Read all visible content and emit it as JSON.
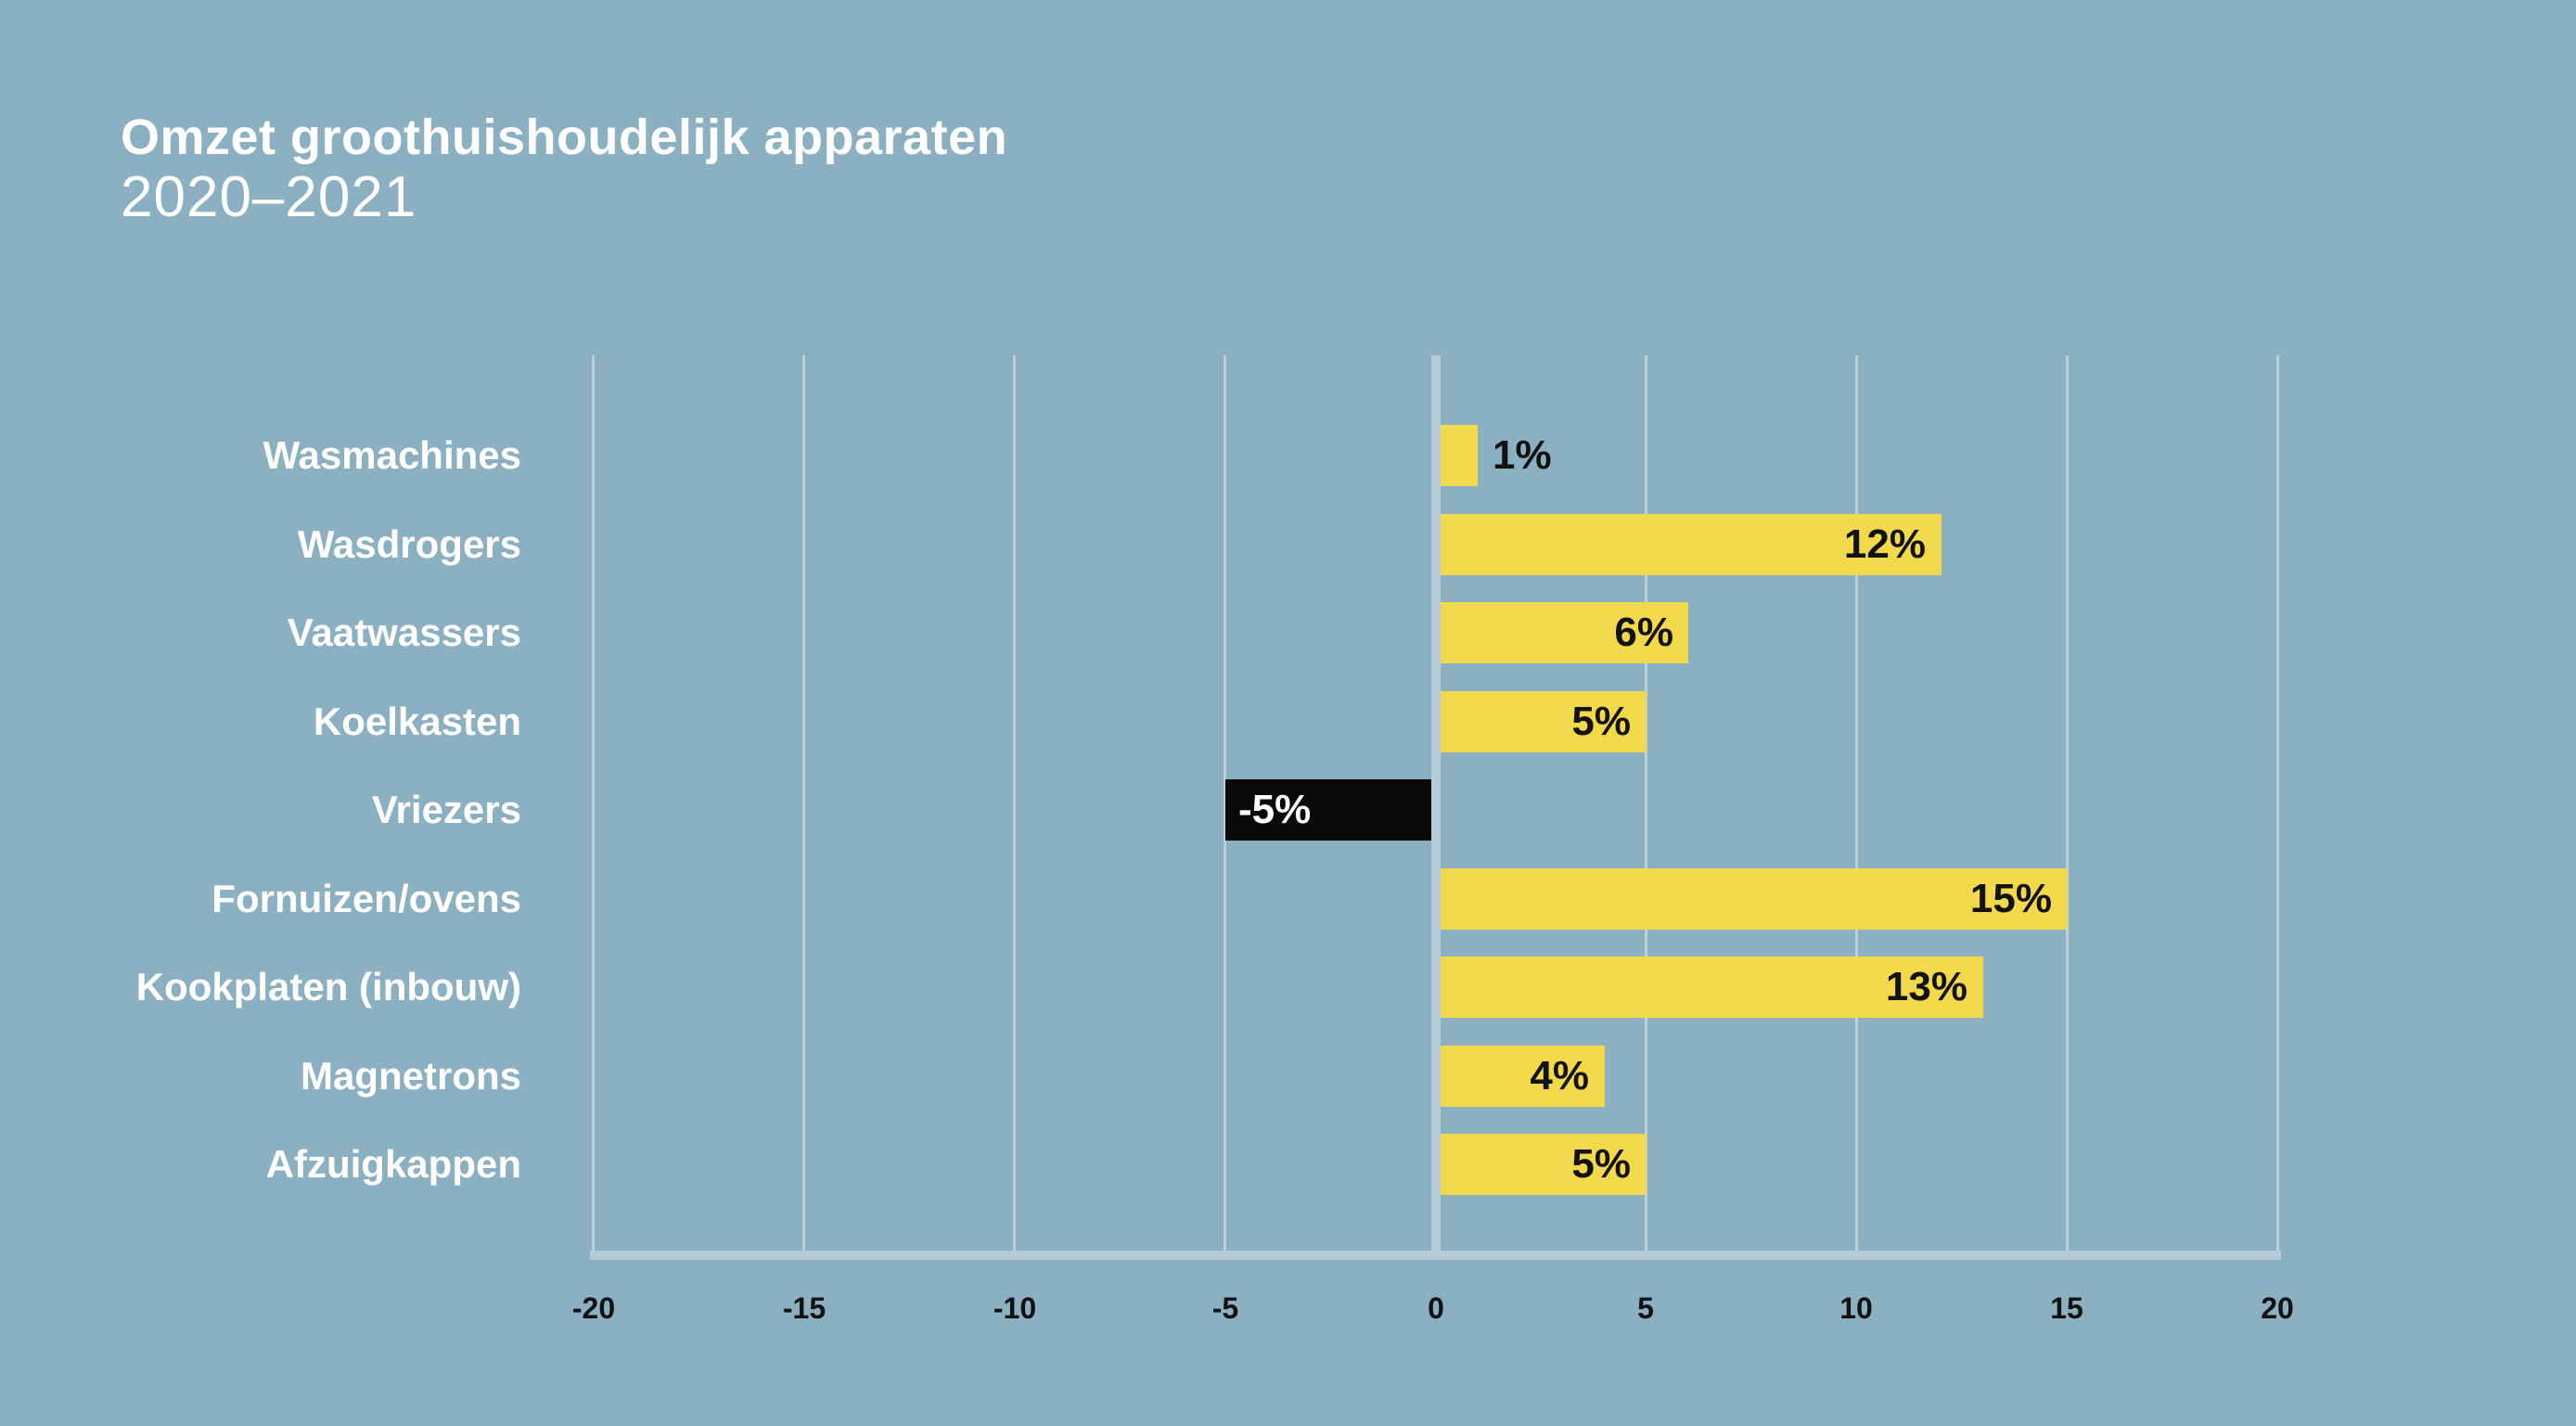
{
  "title": "Omzet groothuishoudelijk apparaten",
  "subtitle": "2020–2021",
  "chart_data": {
    "type": "bar",
    "orientation": "horizontal",
    "title": "Omzet groothuishoudelijk apparaten",
    "subtitle": "2020–2021",
    "categories": [
      "Wasmachines",
      "Wasdrogers",
      "Vaatwassers",
      "Koelkasten",
      "Vriezers",
      "Fornuizen/ovens",
      "Kookplaten (inbouw)",
      "Magnetrons",
      "Afzuigkappen"
    ],
    "values": [
      1,
      12,
      6,
      5,
      -5,
      15,
      13,
      4,
      5
    ],
    "value_labels": [
      "1%",
      "12%",
      "6%",
      "5%",
      "-5%",
      "15%",
      "13%",
      "4%",
      "5%"
    ],
    "xlabel": "",
    "ylabel": "",
    "xlim": [
      -20,
      20
    ],
    "x_ticks": [
      -20,
      -15,
      -10,
      -5,
      0,
      5,
      10,
      15,
      20
    ],
    "x_tick_labels": [
      "-20",
      "-15",
      "-10",
      "-5",
      "0",
      "5",
      "10",
      "15",
      "20"
    ],
    "grid": true,
    "legend": false,
    "colors": {
      "background": "#8BB0C2",
      "bar_positive": "#F2D84B",
      "bar_negative": "#0A0A0A",
      "gridline": "#BCD0DA",
      "zero_axis": "#B5CBD7",
      "baseline": "#B5CBD7",
      "category_text": "#FFFFFF",
      "value_text_positive": "#121212",
      "value_text_negative": "#FFFFFF",
      "tick_text": "#121212",
      "title_text": "#FFFFFF"
    }
  }
}
